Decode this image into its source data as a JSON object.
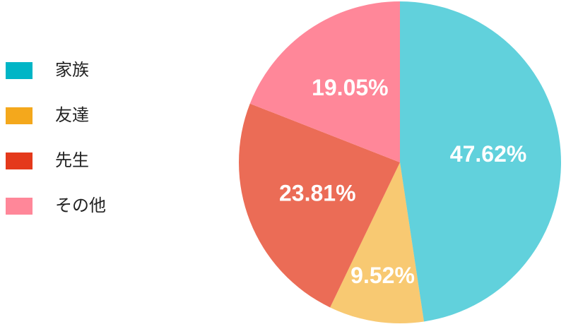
{
  "chart_data": {
    "type": "pie",
    "categories": [
      "家族",
      "友達",
      "先生",
      "その他"
    ],
    "values": [
      47.62,
      9.52,
      23.81,
      19.05
    ],
    "value_labels": [
      "47.62%",
      "9.52%",
      "23.81%",
      "19.05%"
    ],
    "colors": [
      "#00b5c6",
      "#f4a81c",
      "#e4391b",
      "#ff8799"
    ],
    "legend": "left"
  }
}
